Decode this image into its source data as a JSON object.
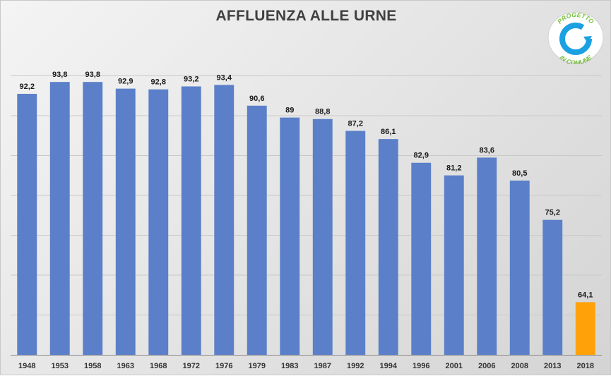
{
  "chart_data": {
    "type": "bar",
    "title": "AFFLUENZA ALLE URNE",
    "xlabel": "",
    "ylabel": "",
    "categories": [
      "1948",
      "1953",
      "1958",
      "1963",
      "1968",
      "1972",
      "1976",
      "1979",
      "1983",
      "1987",
      "1992",
      "1994",
      "1996",
      "2001",
      "2006",
      "2008",
      "2013",
      "2018"
    ],
    "values": [
      92.2,
      93.8,
      93.8,
      92.9,
      92.8,
      93.2,
      93.4,
      90.6,
      89,
      88.8,
      87.2,
      86.1,
      82.9,
      81.2,
      83.6,
      80.5,
      75.2,
      64.1
    ],
    "value_labels": [
      "92,2",
      "93,8",
      "93,8",
      "92,9",
      "92,8",
      "93,2",
      "93,4",
      "90,6",
      "89",
      "88,8",
      "87,2",
      "86,1",
      "82,9",
      "81,2",
      "83,6",
      "80,5",
      "75,2",
      "64,1"
    ],
    "ylim": [
      57,
      100
    ],
    "grid": true,
    "colors": {
      "bar": "#5b80c9",
      "highlight": "#ffa20a",
      "gridline": "#c9c9c9",
      "axis": "#8c8c8c",
      "label": "#1a1a1a"
    },
    "highlight_index": 17
  },
  "logo": {
    "top_text": "PROGETTO",
    "bottom_text": "IN COMUNE",
    "ring_color": "#1ba1e2",
    "text_color": "#7ac143"
  }
}
